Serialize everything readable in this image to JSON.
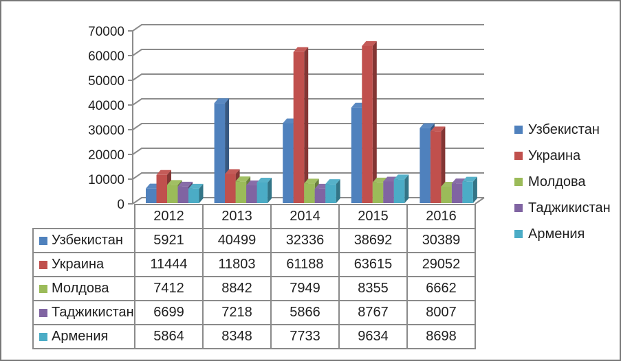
{
  "page": {
    "background": "#ffffff",
    "border_color": "#787878"
  },
  "chart_data": {
    "type": "bar",
    "projection": "3d",
    "title": "",
    "categories": [
      "2012",
      "2013",
      "2014",
      "2015",
      "2016"
    ],
    "series": [
      {
        "name": "Узбекистан",
        "color": "#4F81BD",
        "values": [
          5921,
          40499,
          32336,
          38692,
          30389
        ]
      },
      {
        "name": "Украина",
        "color": "#C0504D",
        "values": [
          11444,
          11803,
          61188,
          63615,
          29052
        ]
      },
      {
        "name": "Молдова",
        "color": "#9BBB59",
        "values": [
          7412,
          8842,
          7949,
          8355,
          6662
        ]
      },
      {
        "name": "Таджикистан",
        "color": "#8064A2",
        "values": [
          6699,
          7218,
          5866,
          8767,
          8007
        ]
      },
      {
        "name": "Армения",
        "color": "#4BACC6",
        "values": [
          5864,
          8348,
          7733,
          9634,
          8698
        ]
      }
    ],
    "ylim": [
      0,
      70000
    ],
    "ytick_step": 10000,
    "ytick_labels": [
      "0",
      "10000",
      "20000",
      "30000",
      "40000",
      "50000",
      "60000",
      "70000"
    ],
    "grid": true,
    "legend_position": "right",
    "data_table_shown": true,
    "gridline_color": "#8b8b8b",
    "table_border_color": "#8a8a8a",
    "axis_text_color": "#1f1f1f"
  }
}
